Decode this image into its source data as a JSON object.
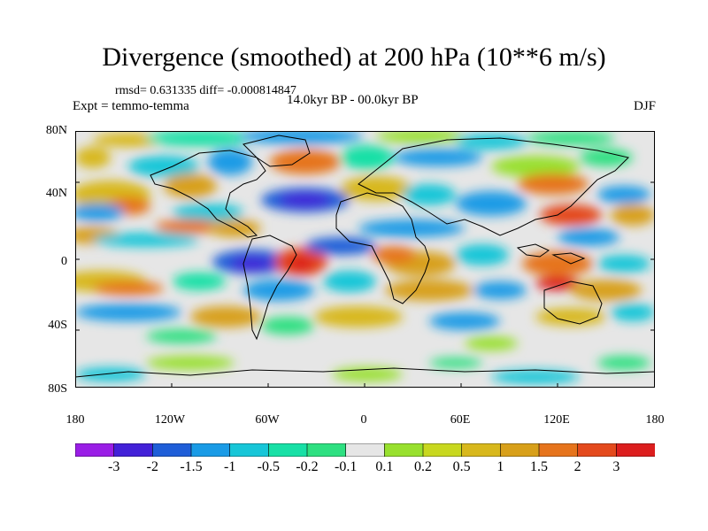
{
  "title": "Divergence (smoothed) at 200 hPa (10**6 m/s)",
  "stats": "rmsd= 0.631335  diff= -0.000814847",
  "experiment": "Expt = temmo-temma",
  "period": "14.0kyr BP - 00.0kyr BP",
  "season": "DJF",
  "lat_labels": [
    "80N",
    "40N",
    "0",
    "40S",
    "80S"
  ],
  "lon_labels": [
    "180",
    "120W",
    "60W",
    "0",
    "60E",
    "120E",
    "180"
  ],
  "colorbar": {
    "colors": [
      "#9a1ee6",
      "#4321d8",
      "#1f5ed8",
      "#1a9be6",
      "#17c6d8",
      "#18e0a6",
      "#2ee081",
      "#e6e6e6",
      "#98e02e",
      "#c8d81f",
      "#d8b81c",
      "#d8a01a",
      "#e6741c",
      "#e44a1d",
      "#dc1e1e"
    ],
    "ticks": [
      "-3",
      "-2",
      "-1.5",
      "-1",
      "-0.5",
      "-0.2",
      "-0.1",
      "0.1",
      "0.2",
      "0.5",
      "1",
      "1.5",
      "2",
      "3"
    ]
  }
}
